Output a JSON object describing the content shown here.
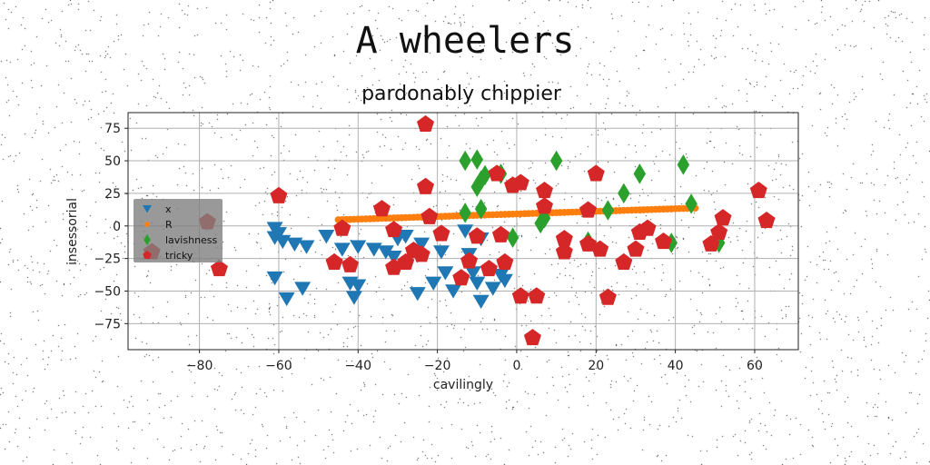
{
  "page": {
    "suptitle": "A wheelers"
  },
  "colors": {
    "x": "#1f77b4",
    "R": "#ff7f0e",
    "lavishness": "#2ca02c",
    "tricky": "#d62728",
    "grid": "#b0b0b0"
  },
  "chart_data": {
    "type": "scatter",
    "title": "pardonably chippier",
    "xlabel": "cavilingly",
    "ylabel": "insessorial",
    "xlim": [
      -98,
      71
    ],
    "ylim": [
      -95,
      87
    ],
    "xticks": [
      -80,
      -60,
      -40,
      -20,
      0,
      20,
      40,
      60
    ],
    "yticks": [
      -75,
      -50,
      -25,
      0,
      25,
      50,
      75
    ],
    "grid": true,
    "legend_position": "center-left",
    "series": [
      {
        "name": "x",
        "marker": "triangle-down",
        "points": [
          [
            -61,
            -2
          ],
          [
            -60,
            -6
          ],
          [
            -61,
            -9
          ],
          [
            -59,
            -12
          ],
          [
            -56,
            -14
          ],
          [
            -53,
            -16
          ],
          [
            -48,
            -8
          ],
          [
            -44,
            -18
          ],
          [
            -40,
            -16
          ],
          [
            -61,
            -40
          ],
          [
            -58,
            -56
          ],
          [
            -54,
            -48
          ],
          [
            -42,
            -44
          ],
          [
            -41,
            -55
          ],
          [
            -40,
            -46
          ],
          [
            -36,
            -18
          ],
          [
            -33,
            -20
          ],
          [
            -31,
            -24
          ],
          [
            -30,
            -10
          ],
          [
            -28,
            -8
          ],
          [
            -25,
            -52
          ],
          [
            -24,
            -14
          ],
          [
            -21,
            -44
          ],
          [
            -19,
            -20
          ],
          [
            -18,
            -36
          ],
          [
            -16,
            -50
          ],
          [
            -13,
            -4
          ],
          [
            -12,
            -22
          ],
          [
            -11,
            -36
          ],
          [
            -10,
            -44
          ],
          [
            -9,
            -58
          ],
          [
            -9,
            -10
          ],
          [
            -6,
            -48
          ],
          [
            -4,
            -38
          ],
          [
            -3,
            -42
          ]
        ]
      },
      {
        "name": "R",
        "marker": "circle",
        "points": [
          [
            -45,
            4.7
          ],
          [
            -44,
            4.8
          ],
          [
            -43,
            4.9
          ],
          [
            -42,
            5.0
          ],
          [
            -41,
            5.1
          ],
          [
            -40,
            5.2
          ],
          [
            -39,
            5.3
          ],
          [
            -38,
            5.4
          ],
          [
            -37,
            5.5
          ],
          [
            -36,
            5.6
          ],
          [
            -35,
            5.7
          ],
          [
            -34,
            5.8
          ],
          [
            -33,
            5.9
          ],
          [
            -32,
            6.0
          ],
          [
            -31,
            6.1
          ],
          [
            -30,
            6.2
          ],
          [
            -29,
            6.3
          ],
          [
            -28,
            6.4
          ],
          [
            -27,
            6.5
          ],
          [
            -26,
            6.6
          ],
          [
            -25,
            6.7
          ],
          [
            -24,
            6.8
          ],
          [
            -23,
            6.9
          ],
          [
            -22,
            7.0
          ],
          [
            -21,
            7.1
          ],
          [
            -20,
            7.2
          ],
          [
            -19,
            7.3
          ],
          [
            -18,
            7.4
          ],
          [
            -17,
            7.5
          ],
          [
            -16,
            7.6
          ],
          [
            -15,
            7.7
          ],
          [
            -14,
            7.8
          ],
          [
            -13,
            7.9
          ],
          [
            -12,
            8.0
          ],
          [
            -11,
            8.1
          ],
          [
            -10,
            8.2
          ],
          [
            -9,
            8.3
          ],
          [
            -8,
            8.4
          ],
          [
            -7,
            8.5
          ],
          [
            -6,
            8.6
          ],
          [
            -5,
            8.7
          ],
          [
            -4,
            8.8
          ],
          [
            -3,
            8.9
          ],
          [
            -2,
            9.0
          ],
          [
            -1,
            9.1
          ],
          [
            0,
            9.2
          ],
          [
            1,
            9.3
          ],
          [
            2,
            9.4
          ],
          [
            3,
            9.5
          ],
          [
            4,
            9.6
          ],
          [
            5,
            9.7
          ],
          [
            6,
            9.8
          ],
          [
            7,
            9.9
          ],
          [
            8,
            10.0
          ],
          [
            9,
            10.1
          ],
          [
            10,
            10.2
          ],
          [
            11,
            10.3
          ],
          [
            12,
            10.4
          ],
          [
            13,
            10.5
          ],
          [
            14,
            10.6
          ],
          [
            15,
            10.7
          ],
          [
            16,
            10.8
          ],
          [
            17,
            10.9
          ],
          [
            18,
            11.0
          ],
          [
            19,
            11.1
          ],
          [
            20,
            11.2
          ],
          [
            21,
            11.3
          ],
          [
            22,
            11.4
          ],
          [
            23,
            11.5
          ],
          [
            24,
            11.6
          ],
          [
            25,
            11.7
          ],
          [
            26,
            11.8
          ],
          [
            27,
            11.9
          ],
          [
            28,
            12.0
          ],
          [
            29,
            12.1
          ],
          [
            30,
            12.2
          ],
          [
            31,
            12.3
          ],
          [
            32,
            12.4
          ],
          [
            33,
            12.5
          ],
          [
            34,
            12.6
          ],
          [
            35,
            12.7
          ],
          [
            36,
            12.8
          ],
          [
            37,
            12.9
          ],
          [
            38,
            13.0
          ],
          [
            39,
            13.1
          ],
          [
            40,
            13.2
          ],
          [
            41,
            13.3
          ],
          [
            42,
            13.4
          ],
          [
            43,
            13.5
          ],
          [
            44,
            13.6
          ],
          [
            45,
            13.7
          ]
        ]
      },
      {
        "name": "lavishness",
        "marker": "diamond",
        "points": [
          [
            -13,
            50
          ],
          [
            -10,
            51
          ],
          [
            -10,
            30
          ],
          [
            -9,
            35
          ],
          [
            -8,
            39
          ],
          [
            -4,
            40
          ],
          [
            -13,
            10
          ],
          [
            -9,
            13
          ],
          [
            -1,
            -9
          ],
          [
            6,
            2
          ],
          [
            7,
            6
          ],
          [
            10,
            50
          ],
          [
            18,
            -12
          ],
          [
            23,
            12
          ],
          [
            27,
            25
          ],
          [
            31,
            40
          ],
          [
            39,
            -13
          ],
          [
            42,
            47
          ],
          [
            44,
            17
          ],
          [
            51,
            -13
          ]
        ]
      },
      {
        "name": "tricky",
        "marker": "pentagon",
        "points": [
          [
            -23,
            78
          ],
          [
            -60,
            23
          ],
          [
            -92,
            -20
          ],
          [
            -78,
            3
          ],
          [
            -75,
            -33
          ],
          [
            -46,
            -28
          ],
          [
            -44,
            -2
          ],
          [
            -42,
            -30
          ],
          [
            -34,
            13
          ],
          [
            -31,
            -3
          ],
          [
            -31,
            -32
          ],
          [
            -28,
            -28
          ],
          [
            -26,
            -19
          ],
          [
            -24,
            -22
          ],
          [
            -23,
            30
          ],
          [
            -22,
            7
          ],
          [
            -19,
            -6
          ],
          [
            -14,
            -40
          ],
          [
            -12,
            -27
          ],
          [
            -10,
            -8
          ],
          [
            -7,
            -33
          ],
          [
            -5,
            40
          ],
          [
            -4,
            -7
          ],
          [
            -3,
            -28
          ],
          [
            -1,
            31
          ],
          [
            1,
            33
          ],
          [
            1,
            -54
          ],
          [
            4,
            -86
          ],
          [
            5,
            -54
          ],
          [
            7,
            27
          ],
          [
            7,
            15
          ],
          [
            12,
            -20
          ],
          [
            12,
            -10
          ],
          [
            18,
            12
          ],
          [
            18,
            -14
          ],
          [
            20,
            40
          ],
          [
            21,
            -18
          ],
          [
            23,
            -55
          ],
          [
            27,
            -28
          ],
          [
            30,
            -18
          ],
          [
            31,
            -5
          ],
          [
            33,
            -2
          ],
          [
            37,
            -12
          ],
          [
            49,
            -14
          ],
          [
            51,
            -5
          ],
          [
            52,
            6
          ],
          [
            61,
            27
          ],
          [
            63,
            4
          ]
        ]
      }
    ]
  }
}
